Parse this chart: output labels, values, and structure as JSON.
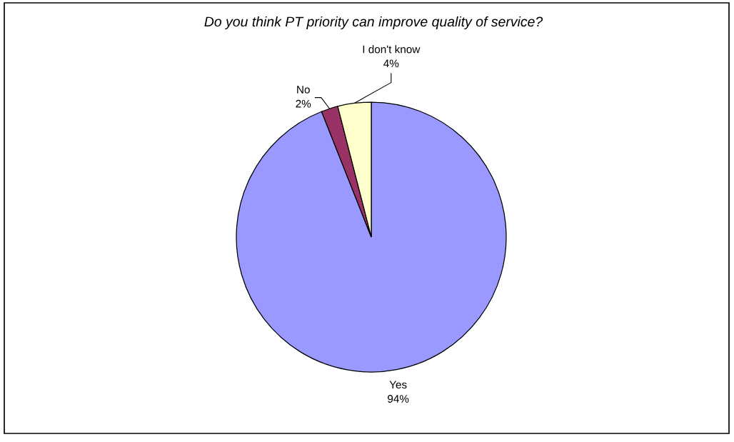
{
  "chart_data": {
    "type": "pie",
    "title": "Do you think PT priority can improve quality of service?",
    "categories": [
      "Yes",
      "No",
      "I don't know"
    ],
    "values": [
      94,
      2,
      4
    ],
    "colors": [
      "#9999ff",
      "#993366",
      "#ffffcc"
    ],
    "value_labels": [
      "94%",
      "2%",
      "4%"
    ]
  }
}
